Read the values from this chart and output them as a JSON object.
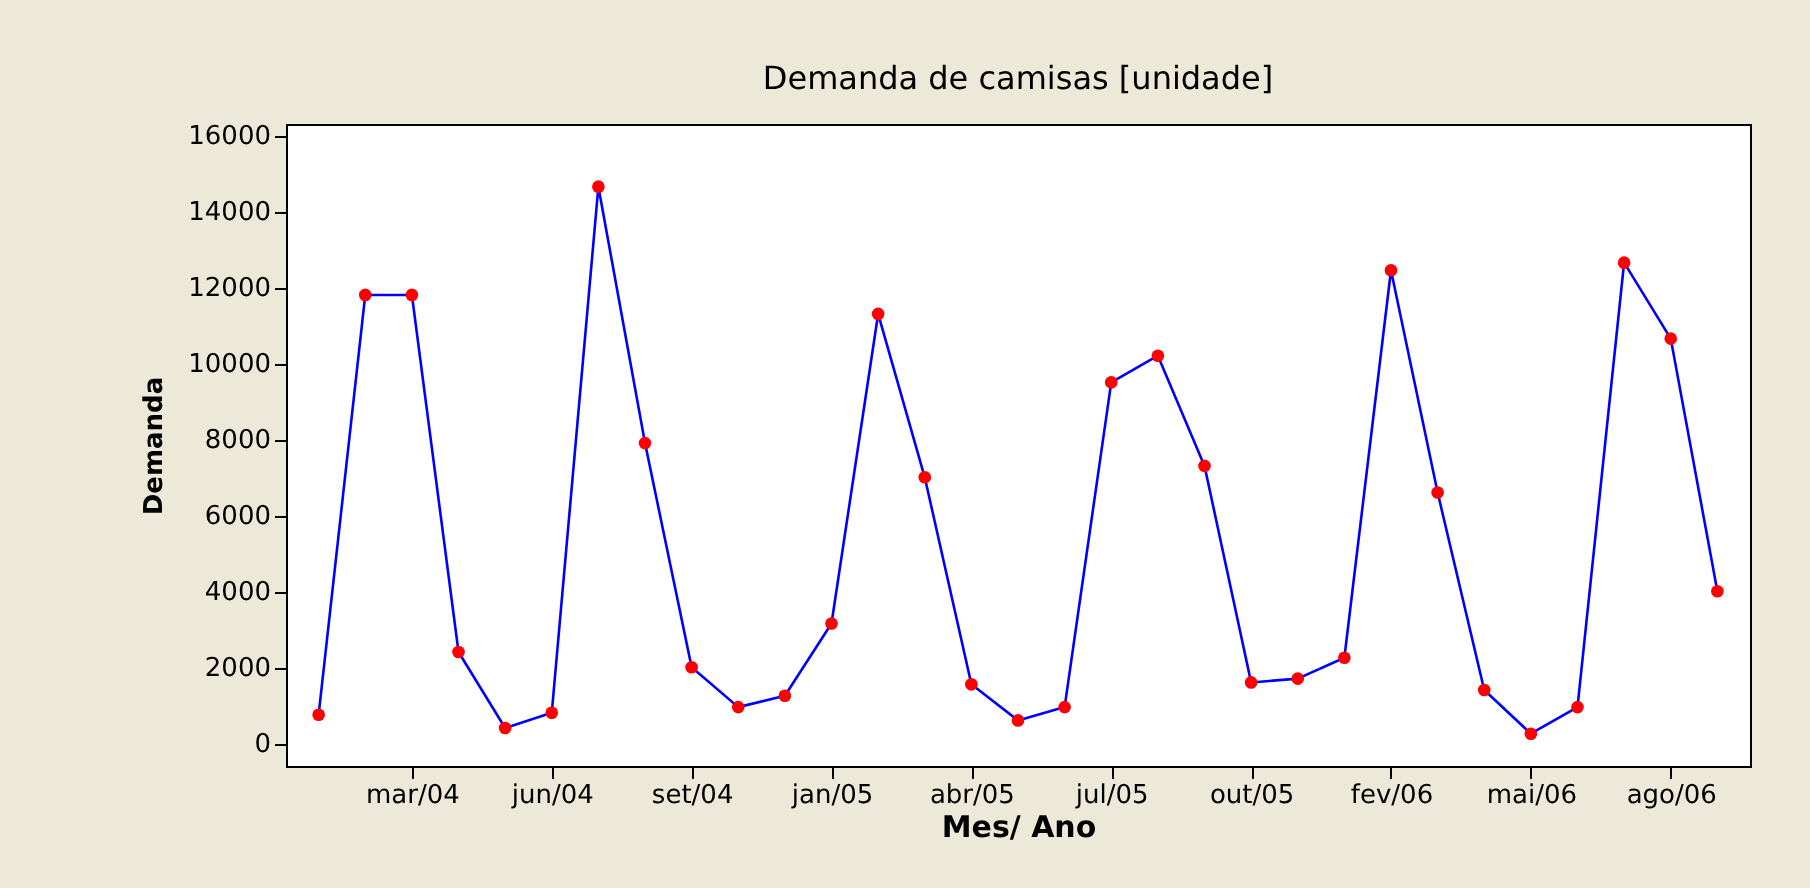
{
  "chart_data": {
    "type": "line",
    "title": "Demanda de camisas [unidade]",
    "xlabel": "Mes/ Ano",
    "ylabel": "Demanda",
    "categories": [
      null,
      null,
      "mar/04",
      null,
      null,
      "jun/04",
      null,
      null,
      "set/04",
      null,
      null,
      "jan/05",
      null,
      null,
      "abr/05",
      null,
      null,
      "jul/05",
      null,
      null,
      "out/05",
      null,
      null,
      "fev/06",
      null,
      null,
      "mai/06",
      null,
      null,
      "ago/06",
      null
    ],
    "series": [
      {
        "color": "#0000ff",
        "values": [
          750,
          11800,
          11800,
          2400,
          400,
          800,
          14650,
          7900,
          2000,
          950,
          1250,
          3150,
          11300,
          7000,
          1550,
          600,
          950,
          9500,
          10200,
          7300,
          1600,
          1700,
          2250,
          12450,
          6600,
          1400,
          250,
          950,
          12650,
          10650,
          4000
        ]
      }
    ],
    "ylim": [
      -600,
      16300
    ],
    "yticks": [
      0,
      2000,
      4000,
      6000,
      8000,
      10000,
      12000,
      14000,
      16000
    ],
    "grid": false,
    "marker": "circle",
    "line_style": "solid"
  }
}
